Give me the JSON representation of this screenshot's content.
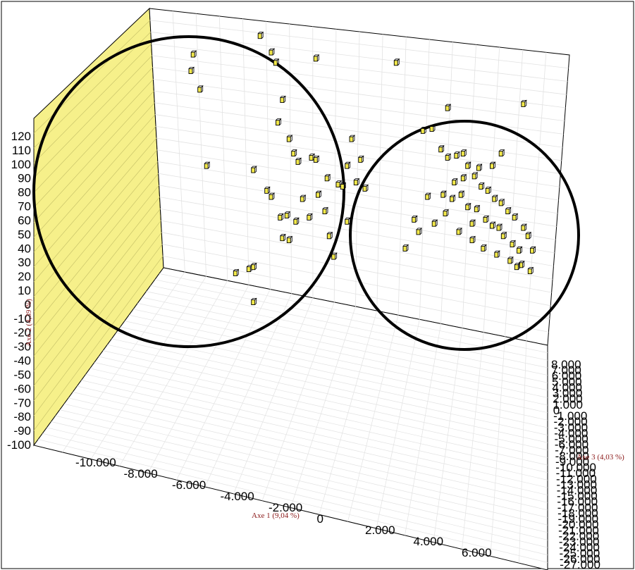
{
  "chart_data": {
    "type": "scatter",
    "title": "",
    "axes": {
      "x": {
        "title": "Axe 1 (9,04 %)",
        "ticks": [
          "-10.000",
          "-8.000",
          "-6.000",
          "-4.000",
          "-2.000",
          "0",
          "2.000",
          "4.000",
          "6.000"
        ],
        "range": [
          -11000,
          7000
        ]
      },
      "y": {
        "title": "Axe 2 (4,39 %)",
        "ticks": [
          "120",
          "110",
          "100",
          "90",
          "80",
          "70",
          "60",
          "50",
          "40",
          "30",
          "20",
          "10",
          "0",
          "-10",
          "-20",
          "-30",
          "-40",
          "-50",
          "-60",
          "-70",
          "-80",
          "-90",
          "-100"
        ],
        "range": [
          -100,
          125
        ]
      },
      "z": {
        "title": "Axe 3 (4,03 %)",
        "ticks": [
          "8.000",
          "7.000",
          "6.000",
          "5.000",
          "4.000",
          "3.000",
          "2.000",
          "1.000",
          "0",
          "-1.000",
          "-2.000",
          "-3.000",
          "-4.000",
          "-5.000",
          "-6.000",
          "-7.000",
          "-8.000",
          "-9.000",
          "-10.000",
          "-11.000",
          "-12.000",
          "-13.000",
          "-14.000",
          "-15.000",
          "-16.000",
          "-17.000",
          "-18.000",
          "-19.000",
          "-20.000",
          "-21.000",
          "-22.000",
          "-23.000",
          "-24.000",
          "-25.000",
          "-26.000",
          "-27.000"
        ]
      }
    },
    "grid": true,
    "walls": {
      "left": "#f6f08a",
      "back": "#ffffff",
      "floor": "#ffffff"
    },
    "marker_color": "#f2e84a",
    "annotations": [
      {
        "type": "circle",
        "label": "",
        "group": "left cluster"
      },
      {
        "type": "circle",
        "label": "",
        "group": "right cluster"
      }
    ],
    "points": [
      {
        "x": -8.5,
        "y": 112
      },
      {
        "x": -8.6,
        "y": 104
      },
      {
        "x": -8.2,
        "y": 95
      },
      {
        "x": -5.5,
        "y": 121
      },
      {
        "x": -5.0,
        "y": 113
      },
      {
        "x": -4.8,
        "y": 108
      },
      {
        "x": -4.5,
        "y": 90
      },
      {
        "x": -3.0,
        "y": 110
      },
      {
        "x": -4.7,
        "y": 79
      },
      {
        "x": -4.2,
        "y": 71
      },
      {
        "x": -4.0,
        "y": 64
      },
      {
        "x": -3.8,
        "y": 60
      },
      {
        "x": -3.2,
        "y": 62
      },
      {
        "x": -3.0,
        "y": 61
      },
      {
        "x": -2.5,
        "y": 52
      },
      {
        "x": -2.0,
        "y": 49
      },
      {
        "x": -1.6,
        "y": 58
      },
      {
        "x": -1.2,
        "y": 50
      },
      {
        "x": -0.8,
        "y": 47
      },
      {
        "x": -1.4,
        "y": 71
      },
      {
        "x": -1.0,
        "y": 61
      },
      {
        "x": -5.8,
        "y": 56
      },
      {
        "x": -5.2,
        "y": 46
      },
      {
        "x": -5.0,
        "y": 43
      },
      {
        "x": -4.6,
        "y": 33
      },
      {
        "x": -4.3,
        "y": 34
      },
      {
        "x": -4.5,
        "y": 23
      },
      {
        "x": -4.2,
        "y": 22
      },
      {
        "x": -3.9,
        "y": 31
      },
      {
        "x": -3.6,
        "y": 42
      },
      {
        "x": -3.3,
        "y": 33
      },
      {
        "x": -2.9,
        "y": 44
      },
      {
        "x": -2.6,
        "y": 36
      },
      {
        "x": -2.4,
        "y": 24
      },
      {
        "x": -2.2,
        "y": 14
      },
      {
        "x": -1.8,
        "y": 48
      },
      {
        "x": -1.6,
        "y": 31
      },
      {
        "x": -7.9,
        "y": 58
      },
      {
        "x": -6.6,
        "y": 6
      },
      {
        "x": -6.0,
        "y": 8
      },
      {
        "x": -5.8,
        "y": 9
      },
      {
        "x": -5.8,
        "y": -8
      },
      {
        "x": 0.6,
        "y": 108
      },
      {
        "x": 1.8,
        "y": 75
      },
      {
        "x": 2.2,
        "y": 76
      },
      {
        "x": 2.6,
        "y": 66
      },
      {
        "x": 2.9,
        "y": 62
      },
      {
        "x": 3.3,
        "y": 63
      },
      {
        "x": 3.6,
        "y": 64
      },
      {
        "x": 3.8,
        "y": 58
      },
      {
        "x": 4.1,
        "y": 53
      },
      {
        "x": 4.4,
        "y": 48
      },
      {
        "x": 4.7,
        "y": 46
      },
      {
        "x": 5.0,
        "y": 42
      },
      {
        "x": 5.3,
        "y": 40
      },
      {
        "x": 5.6,
        "y": 36
      },
      {
        "x": 5.9,
        "y": 33
      },
      {
        "x": 6.3,
        "y": 28
      },
      {
        "x": 6.5,
        "y": 24
      },
      {
        "x": 6.7,
        "y": 17
      },
      {
        "x": 2.3,
        "y": 30
      },
      {
        "x": 2.7,
        "y": 44
      },
      {
        "x": 3.1,
        "y": 42
      },
      {
        "x": 3.5,
        "y": 44
      },
      {
        "x": 3.8,
        "y": 38
      },
      {
        "x": 4.2,
        "y": 37
      },
      {
        "x": 4.6,
        "y": 32
      },
      {
        "x": 4.9,
        "y": 29
      },
      {
        "x": 5.2,
        "y": 28
      },
      {
        "x": 5.4,
        "y": 24
      },
      {
        "x": 5.8,
        "y": 20
      },
      {
        "x": 6.1,
        "y": 17
      },
      {
        "x": 6.2,
        "y": 10
      },
      {
        "x": 1.4,
        "y": 32
      },
      {
        "x": 1.6,
        "y": 26
      },
      {
        "x": 1.0,
        "y": 18
      },
      {
        "x": 3.4,
        "y": 26
      },
      {
        "x": 4.0,
        "y": 22
      },
      {
        "x": 4.5,
        "y": 18
      },
      {
        "x": 5.1,
        "y": 15
      },
      {
        "x": 5.7,
        "y": 12
      },
      {
        "x": 6.0,
        "y": 9
      },
      {
        "x": 6.6,
        "y": 7
      },
      {
        "x": 3.2,
        "y": 50
      },
      {
        "x": 3.6,
        "y": 52
      },
      {
        "x": 4.3,
        "y": 57
      },
      {
        "x": 4.0,
        "y": 30
      },
      {
        "x": 2.8,
        "y": 35
      },
      {
        "x": 4.9,
        "y": 58
      },
      {
        "x": 5.3,
        "y": 64
      },
      {
        "x": 2.0,
        "y": 43
      },
      {
        "x": 6.3,
        "y": 88
      },
      {
        "x": 2.9,
        "y": 86
      }
    ]
  }
}
